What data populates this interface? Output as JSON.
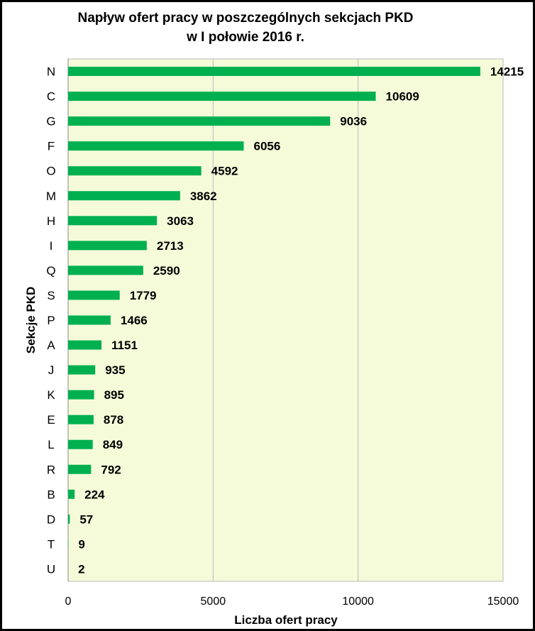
{
  "chart_data": {
    "type": "bar",
    "orientation": "horizontal",
    "title_lines": [
      "Napływ ofert pracy w poszczególnych sekcjach PKD",
      "w  I połowie 2016 r."
    ],
    "xlabel": "Liczba ofert pracy",
    "ylabel": "Sekcje PKD",
    "xlim": [
      0,
      15000
    ],
    "xticks": [
      0,
      5000,
      10000,
      15000
    ],
    "grid": true,
    "legend": "none",
    "categories": [
      "N",
      "C",
      "G",
      "F",
      "O",
      "M",
      "H",
      "I",
      "Q",
      "S",
      "P",
      "A",
      "J",
      "K",
      "E",
      "L",
      "R",
      "B",
      "D",
      "T",
      "U"
    ],
    "values": [
      14215,
      10609,
      9036,
      6056,
      4592,
      3862,
      3063,
      2713,
      2590,
      1779,
      1466,
      1151,
      935,
      895,
      878,
      849,
      792,
      224,
      57,
      9,
      2
    ],
    "colors": {
      "bar": "#00b050",
      "plot_bg": "#f5fbd9",
      "grid": "#b8b8b8"
    }
  }
}
